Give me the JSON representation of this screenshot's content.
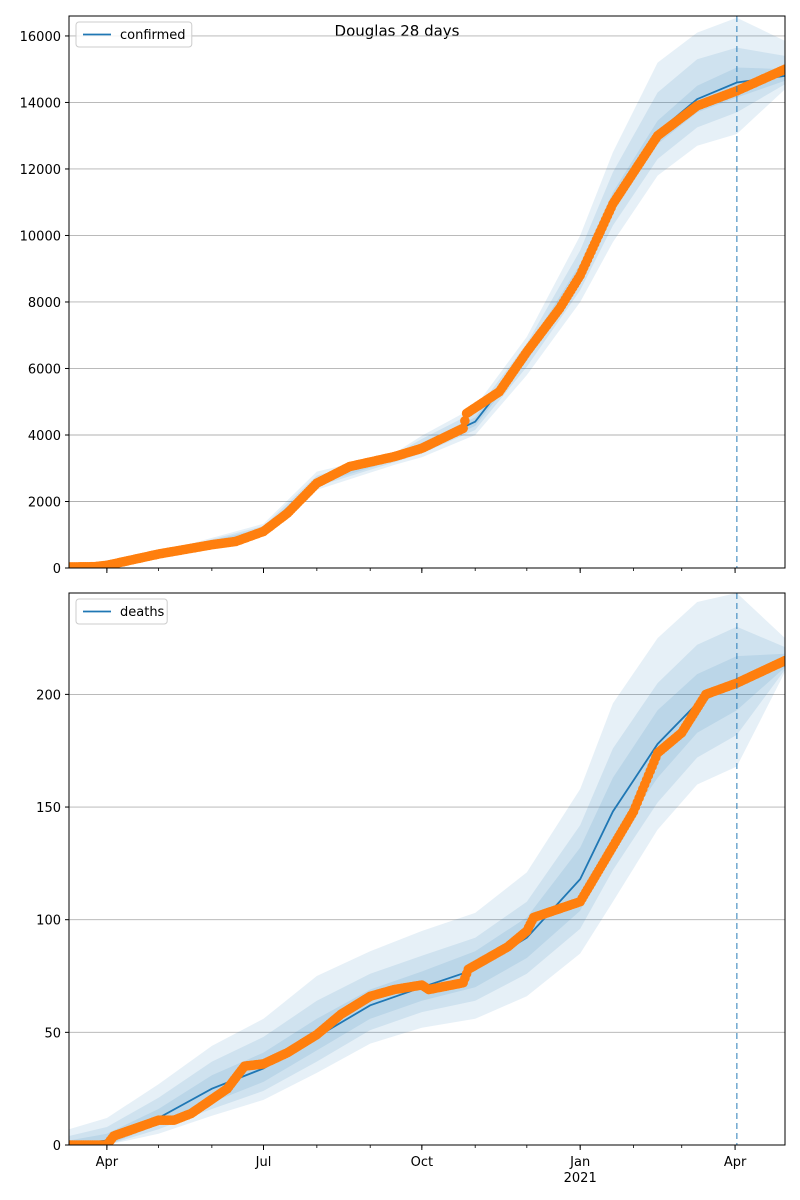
{
  "figure": {
    "title": "Douglas 28 days"
  },
  "colors": {
    "model": "#1f77b4",
    "observed": "#ff7f0e",
    "band": "#1f77b4",
    "grid": "#b0b0b0",
    "forecast_line": "#1f77b4"
  },
  "chart_data": [
    {
      "type": "line",
      "title": "Douglas 28 days",
      "legend": {
        "label": "confirmed",
        "placement": "top-left"
      },
      "x_axis": {
        "start": "2020-03-10",
        "end": "2021-04-30",
        "tick_labels": [
          "Apr",
          "Jul",
          "Oct",
          "Jan\n2021",
          "Apr"
        ],
        "tick_dates": [
          "2020-04-01",
          "2020-07-01",
          "2020-10-01",
          "2021-01-01",
          "2021-04-01"
        ]
      },
      "ylim": [
        0,
        16600
      ],
      "yticks": [
        0,
        2000,
        4000,
        6000,
        8000,
        10000,
        12000,
        14000,
        16000
      ],
      "grid": "horizontal",
      "forecast_start": "2021-04-02",
      "series": [
        {
          "name": "confirmed",
          "kind": "model",
          "x": [
            "2020-03-10",
            "2020-04-01",
            "2020-05-01",
            "2020-06-01",
            "2020-07-01",
            "2020-08-01",
            "2020-08-20",
            "2020-09-15",
            "2020-10-01",
            "2020-11-01",
            "2020-12-01",
            "2021-01-01",
            "2021-01-20",
            "2021-02-15",
            "2021-03-10",
            "2021-04-02",
            "2021-04-30"
          ],
          "values": [
            30,
            90,
            420,
            720,
            1150,
            2600,
            3050,
            3350,
            3650,
            4400,
            6400,
            8900,
            11000,
            13100,
            14100,
            14600,
            14800
          ]
        },
        {
          "kind": "observed",
          "x": [
            "2020-03-10",
            "2020-03-25",
            "2020-04-01",
            "2020-05-01",
            "2020-06-01",
            "2020-06-15",
            "2020-07-01",
            "2020-07-15",
            "2020-08-01",
            "2020-08-20",
            "2020-09-15",
            "2020-10-01",
            "2020-10-25",
            "2020-10-27",
            "2020-11-15",
            "2020-12-01",
            "2020-12-20",
            "2021-01-01",
            "2021-01-20",
            "2021-02-15",
            "2021-03-10",
            "2021-04-02",
            "2021-04-30"
          ],
          "values": [
            30,
            40,
            80,
            420,
            700,
            800,
            1100,
            1650,
            2550,
            3050,
            3350,
            3600,
            4200,
            4650,
            5300,
            6500,
            7800,
            8800,
            10950,
            13000,
            13900,
            14350,
            15000
          ]
        }
      ],
      "bands": [
        {
          "level": "outer",
          "x": [
            "2020-03-10",
            "2020-05-01",
            "2020-07-01",
            "2020-08-01",
            "2020-09-15",
            "2020-10-01",
            "2020-11-01",
            "2020-12-01",
            "2021-01-01",
            "2021-01-20",
            "2021-02-15",
            "2021-03-10",
            "2021-04-02",
            "2021-04-30"
          ],
          "low": [
            0,
            380,
            1000,
            2350,
            3100,
            3330,
            4000,
            5800,
            8000,
            9800,
            11800,
            12700,
            13050,
            14400
          ],
          "high": [
            60,
            470,
            1330,
            2900,
            3450,
            3980,
            4850,
            6950,
            10000,
            12500,
            15200,
            16100,
            16550,
            15850
          ]
        },
        {
          "level": "middle",
          "x": [
            "2020-03-10",
            "2020-05-01",
            "2020-07-01",
            "2020-08-01",
            "2020-09-15",
            "2020-10-01",
            "2020-11-01",
            "2020-12-01",
            "2021-01-01",
            "2021-01-20",
            "2021-02-15",
            "2021-03-10",
            "2021-04-02",
            "2021-04-30"
          ],
          "low": [
            10,
            395,
            1060,
            2450,
            3180,
            3440,
            4150,
            6050,
            8350,
            10300,
            12300,
            13250,
            13700,
            14550
          ],
          "high": [
            50,
            450,
            1260,
            2780,
            3410,
            3880,
            4700,
            6750,
            9550,
            11900,
            14300,
            15300,
            15650,
            15400
          ]
        },
        {
          "level": "inner",
          "x": [
            "2020-03-10",
            "2020-05-01",
            "2020-07-01",
            "2020-08-01",
            "2020-09-15",
            "2020-10-01",
            "2020-11-01",
            "2020-12-01",
            "2021-01-01",
            "2021-01-20",
            "2021-02-15",
            "2021-03-10",
            "2021-04-02",
            "2021-04-30"
          ],
          "low": [
            20,
            405,
            1100,
            2520,
            3240,
            3550,
            4270,
            6230,
            8650,
            10700,
            12750,
            13700,
            14150,
            14650
          ],
          "high": [
            40,
            435,
            1200,
            2680,
            3370,
            3770,
            4530,
            6580,
            9150,
            11300,
            13450,
            14500,
            15050,
            15000
          ]
        }
      ]
    },
    {
      "type": "line",
      "legend": {
        "label": "deaths",
        "placement": "top-left"
      },
      "x_axis": {
        "start": "2020-03-10",
        "end": "2021-04-30",
        "tick_labels": [
          "Apr",
          "Jul",
          "Oct",
          "Jan\n2021",
          "Apr"
        ],
        "tick_dates": [
          "2020-04-01",
          "2020-07-01",
          "2020-10-01",
          "2021-01-01",
          "2021-04-01"
        ]
      },
      "ylim": [
        0,
        245
      ],
      "yticks": [
        0,
        50,
        100,
        150,
        200
      ],
      "grid": "horizontal",
      "forecast_start": "2021-04-02",
      "series": [
        {
          "name": "deaths",
          "kind": "model",
          "x": [
            "2020-03-10",
            "2020-04-01",
            "2020-05-01",
            "2020-06-01",
            "2020-07-01",
            "2020-08-01",
            "2020-09-01",
            "2020-10-01",
            "2020-11-01",
            "2020-12-01",
            "2021-01-01",
            "2021-01-20",
            "2021-02-15",
            "2021-03-10",
            "2021-04-02",
            "2021-04-30"
          ],
          "values": [
            0,
            2,
            12,
            25,
            34,
            48,
            62,
            70,
            78,
            92,
            118,
            148,
            178,
            196,
            205,
            213
          ]
        },
        {
          "kind": "observed",
          "x": [
            "2020-03-10",
            "2020-04-01",
            "2020-04-05",
            "2020-05-01",
            "2020-05-10",
            "2020-05-20",
            "2020-06-10",
            "2020-06-20",
            "2020-07-01",
            "2020-07-15",
            "2020-08-01",
            "2020-08-15",
            "2020-09-01",
            "2020-09-15",
            "2020-10-01",
            "2020-10-05",
            "2020-10-25",
            "2020-10-28",
            "2020-11-20",
            "2020-12-01",
            "2020-12-05",
            "2021-01-01",
            "2021-01-15",
            "2021-02-01",
            "2021-02-15",
            "2021-03-01",
            "2021-03-15",
            "2021-04-02",
            "2021-04-30"
          ],
          "values": [
            0,
            0,
            4,
            11,
            11,
            14,
            25,
            35,
            36,
            41,
            49,
            58,
            66,
            69,
            71,
            69,
            72,
            78,
            88,
            95,
            101,
            108,
            126,
            148,
            174,
            183,
            200,
            205,
            215
          ]
        }
      ],
      "bands": [
        {
          "level": "outer",
          "x": [
            "2020-03-10",
            "2020-04-01",
            "2020-05-01",
            "2020-06-01",
            "2020-07-01",
            "2020-08-01",
            "2020-09-01",
            "2020-10-01",
            "2020-11-01",
            "2020-12-01",
            "2021-01-01",
            "2021-01-20",
            "2021-02-15",
            "2021-03-10",
            "2021-04-02",
            "2021-04-30"
          ],
          "low": [
            0,
            0,
            5,
            13,
            20,
            32,
            45,
            52,
            56,
            66,
            85,
            108,
            140,
            160,
            168,
            210
          ],
          "high": [
            7,
            12,
            27,
            44,
            56,
            75,
            86,
            95,
            103,
            121,
            158,
            196,
            225,
            241,
            245,
            225
          ]
        },
        {
          "level": "middle",
          "x": [
            "2020-03-10",
            "2020-04-01",
            "2020-05-01",
            "2020-06-01",
            "2020-07-01",
            "2020-08-01",
            "2020-09-01",
            "2020-10-01",
            "2020-11-01",
            "2020-12-01",
            "2021-01-01",
            "2021-01-20",
            "2021-02-15",
            "2021-03-10",
            "2021-04-02",
            "2021-04-30"
          ],
          "low": [
            0,
            0,
            7,
            16,
            24,
            37,
            51,
            59,
            64,
            76,
            96,
            122,
            152,
            172,
            182,
            211
          ],
          "high": [
            4,
            8,
            21,
            37,
            48,
            64,
            76,
            84,
            92,
            108,
            142,
            176,
            205,
            222,
            230,
            221
          ]
        },
        {
          "level": "inner",
          "x": [
            "2020-03-10",
            "2020-04-01",
            "2020-05-01",
            "2020-06-01",
            "2020-07-01",
            "2020-08-01",
            "2020-09-01",
            "2020-10-01",
            "2020-11-01",
            "2020-12-01",
            "2021-01-01",
            "2021-01-20",
            "2021-02-15",
            "2021-03-10",
            "2021-04-02",
            "2021-04-30"
          ],
          "low": [
            0,
            0,
            9,
            19,
            28,
            42,
            56,
            64,
            70,
            83,
            104,
            134,
            163,
            183,
            193,
            212
          ],
          "high": [
            2,
            5,
            16,
            31,
            41,
            56,
            69,
            77,
            86,
            101,
            132,
            163,
            193,
            209,
            217,
            218
          ]
        }
      ]
    }
  ]
}
